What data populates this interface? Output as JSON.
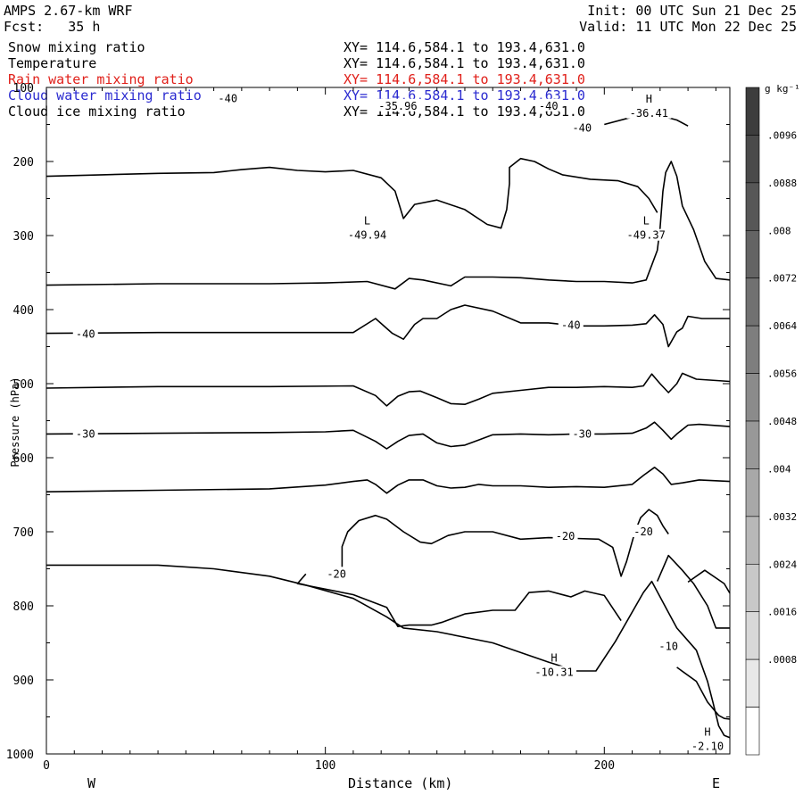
{
  "header": {
    "model": "AMPS 2.67-km WRF",
    "forecast": "Fcst:   35 h",
    "init": "Init: 00 UTC Sun 21 Dec 25",
    "valid": "Valid: 11 UTC Mon 22 Dec 25"
  },
  "fields": [
    {
      "name": "Snow mixing ratio",
      "xy": "XY= 114.6,584.1 to 193.4,631.0",
      "color": "#000000"
    },
    {
      "name": "Temperature",
      "xy": "XY= 114.6,584.1 to 193.4,631.0",
      "color": "#000000"
    },
    {
      "name": "Rain water mixing ratio",
      "xy": "XY= 114.6,584.1 to 193.4,631.0",
      "color": "#e0201a"
    },
    {
      "name": "Cloud water mixing ratio",
      "xy": "XY= 114.6,584.1 to 193.4,631.0",
      "color": "#2a2ad0"
    },
    {
      "name": "Cloud ice mixing ratio",
      "xy": "XY= 114.6,584.1 to 193.4,631.0",
      "color": "#000000"
    }
  ],
  "colorbar": {
    "unit": "g kg⁻¹",
    "ticks": [
      ".0096",
      ".0088",
      ".008",
      ".0072",
      ".0064",
      ".0056",
      ".0048",
      ".004",
      ".0032",
      ".0024",
      ".0016",
      ".0008"
    ],
    "colors": [
      "#3d3d3d",
      "#4a4a4a",
      "#575757",
      "#646464",
      "#717171",
      "#7e7e7e",
      "#8b8b8b",
      "#989898",
      "#a8a8a8",
      "#b8b8b8",
      "#c8c8c8",
      "#d8d8d8",
      "#e8e8e8",
      "#ffffff"
    ]
  },
  "chart_data": {
    "type": "contour",
    "title": "",
    "xlabel": "Distance (km)",
    "ylabel": "Pressure (hPa)",
    "xlim": [
      0,
      245
    ],
    "ylim": [
      1000,
      100
    ],
    "y_inverted": true,
    "x_ticks": [
      0,
      100,
      200
    ],
    "y_ticks": [
      100,
      200,
      300,
      400,
      500,
      600,
      700,
      800,
      900,
      1000
    ],
    "x_end_labels": {
      "left": "W",
      "right": "E"
    },
    "contour_labels": [
      {
        "text": "-40",
        "x": 65,
        "p": 115
      },
      {
        "text": "-35.96",
        "x": 126,
        "p": 125
      },
      {
        "text": "-40",
        "x": 180,
        "p": 125
      },
      {
        "text": "-40",
        "x": 192,
        "p": 155
      },
      {
        "text": "-40",
        "x": 14,
        "p": 433
      },
      {
        "text": "-40",
        "x": 188,
        "p": 421
      },
      {
        "text": "-30",
        "x": 14,
        "p": 568
      },
      {
        "text": "-30",
        "x": 192,
        "p": 568
      },
      {
        "text": "-20",
        "x": 104,
        "p": 757
      },
      {
        "text": "-20",
        "x": 186,
        "p": 706
      },
      {
        "text": "-20",
        "x": 214,
        "p": 700
      },
      {
        "text": "-10",
        "x": 223,
        "p": 855
      }
    ],
    "extrema": [
      {
        "kind": "H",
        "value": "-36.41",
        "x": 216,
        "p": 125
      },
      {
        "kind": "L",
        "value": "-49.94",
        "x": 115,
        "p": 290
      },
      {
        "kind": "L",
        "value": "-49.37",
        "x": 215,
        "p": 290
      },
      {
        "kind": "H",
        "value": "-10.31",
        "x": 182,
        "p": 880
      },
      {
        "kind": "H",
        "value": "-2.10",
        "x": 237,
        "p": 980
      }
    ],
    "isotherms": [
      {
        "pts": [
          [
            0,
            220
          ],
          [
            20,
            218
          ],
          [
            40,
            216
          ],
          [
            60,
            215
          ],
          [
            70,
            211
          ],
          [
            80,
            208
          ],
          [
            90,
            212
          ],
          [
            100,
            214
          ],
          [
            110,
            212
          ],
          [
            120,
            222
          ],
          [
            125,
            240
          ],
          [
            128,
            277
          ],
          [
            132,
            258
          ],
          [
            140,
            252
          ],
          [
            150,
            265
          ],
          [
            158,
            285
          ],
          [
            163,
            290
          ],
          [
            165,
            265
          ],
          [
            166,
            230
          ],
          [
            166,
            208
          ],
          [
            170,
            196
          ],
          [
            175,
            200
          ],
          [
            180,
            210
          ],
          [
            185,
            218
          ],
          [
            195,
            224
          ],
          [
            205,
            226
          ],
          [
            212,
            234
          ],
          [
            216,
            250
          ],
          [
            219,
            269
          ]
        ]
      },
      {
        "pts": [
          [
            0,
            367
          ],
          [
            40,
            365
          ],
          [
            80,
            365
          ],
          [
            100,
            364
          ],
          [
            115,
            362
          ],
          [
            125,
            372
          ],
          [
            130,
            358
          ],
          [
            135,
            360
          ],
          [
            145,
            368
          ],
          [
            150,
            356
          ],
          [
            160,
            356
          ],
          [
            170,
            357
          ],
          [
            180,
            360
          ],
          [
            190,
            362
          ],
          [
            200,
            362
          ],
          [
            210,
            364
          ],
          [
            215,
            360
          ],
          [
            217,
            340
          ],
          [
            219,
            320
          ],
          [
            220,
            290
          ],
          [
            221,
            240
          ],
          [
            222,
            215
          ],
          [
            224,
            200
          ],
          [
            226,
            220
          ],
          [
            228,
            260
          ],
          [
            232,
            292
          ],
          [
            236,
            335
          ],
          [
            240,
            358
          ],
          [
            245,
            360
          ]
        ]
      },
      {
        "pts": [
          [
            0,
            432
          ],
          [
            40,
            431
          ],
          [
            80,
            431
          ],
          [
            110,
            431
          ],
          [
            118,
            412
          ],
          [
            124,
            432
          ],
          [
            128,
            440
          ],
          [
            132,
            420
          ],
          [
            135,
            412
          ],
          [
            140,
            412
          ],
          [
            145,
            400
          ],
          [
            150,
            394
          ],
          [
            160,
            402
          ],
          [
            170,
            418
          ],
          [
            180,
            418
          ],
          [
            190,
            422
          ],
          [
            200,
            422
          ],
          [
            210,
            421
          ],
          [
            215,
            419
          ],
          [
            218,
            407
          ],
          [
            221,
            420
          ],
          [
            223,
            450
          ],
          [
            226,
            430
          ],
          [
            228,
            425
          ],
          [
            230,
            409
          ],
          [
            235,
            412
          ],
          [
            245,
            412
          ]
        ]
      },
      {
        "pts": [
          [
            0,
            506
          ],
          [
            40,
            504
          ],
          [
            80,
            504
          ],
          [
            110,
            503
          ],
          [
            118,
            516
          ],
          [
            122,
            530
          ],
          [
            126,
            517
          ],
          [
            130,
            511
          ],
          [
            134,
            510
          ],
          [
            140,
            519
          ],
          [
            145,
            527
          ],
          [
            150,
            528
          ],
          [
            155,
            521
          ],
          [
            160,
            513
          ],
          [
            170,
            509
          ],
          [
            180,
            505
          ],
          [
            190,
            505
          ],
          [
            200,
            504
          ],
          [
            210,
            505
          ],
          [
            214,
            503
          ],
          [
            217,
            487
          ],
          [
            220,
            500
          ],
          [
            223,
            512
          ],
          [
            226,
            500
          ],
          [
            228,
            486
          ],
          [
            233,
            494
          ],
          [
            245,
            497
          ]
        ]
      },
      {
        "pts": [
          [
            0,
            568
          ],
          [
            40,
            567
          ],
          [
            80,
            566
          ],
          [
            100,
            565
          ],
          [
            110,
            563
          ],
          [
            118,
            578
          ],
          [
            122,
            588
          ],
          [
            126,
            578
          ],
          [
            130,
            570
          ],
          [
            135,
            568
          ],
          [
            140,
            580
          ],
          [
            145,
            585
          ],
          [
            150,
            583
          ],
          [
            155,
            576
          ],
          [
            160,
            569
          ],
          [
            170,
            568
          ],
          [
            180,
            569
          ],
          [
            190,
            568
          ],
          [
            200,
            568
          ],
          [
            210,
            567
          ],
          [
            215,
            560
          ],
          [
            218,
            552
          ],
          [
            221,
            563
          ],
          [
            224,
            575
          ],
          [
            226,
            568
          ],
          [
            230,
            556
          ],
          [
            234,
            555
          ],
          [
            245,
            558
          ]
        ]
      },
      {
        "pts": [
          [
            0,
            646
          ],
          [
            40,
            644
          ],
          [
            80,
            642
          ],
          [
            100,
            637
          ],
          [
            110,
            632
          ],
          [
            115,
            630
          ],
          [
            118,
            636
          ],
          [
            122,
            648
          ],
          [
            126,
            637
          ],
          [
            130,
            630
          ],
          [
            135,
            630
          ],
          [
            140,
            638
          ],
          [
            145,
            641
          ],
          [
            150,
            640
          ],
          [
            155,
            636
          ],
          [
            160,
            638
          ],
          [
            170,
            638
          ],
          [
            180,
            640
          ],
          [
            190,
            639
          ],
          [
            200,
            640
          ],
          [
            210,
            636
          ],
          [
            214,
            624
          ],
          [
            218,
            613
          ],
          [
            221,
            622
          ],
          [
            224,
            636
          ],
          [
            228,
            634
          ],
          [
            234,
            630
          ],
          [
            245,
            632
          ]
        ]
      },
      {
        "pts": [
          [
            106,
            757
          ],
          [
            106,
            720
          ],
          [
            108,
            700
          ],
          [
            112,
            685
          ],
          [
            118,
            678
          ],
          [
            122,
            683
          ],
          [
            128,
            700
          ],
          [
            134,
            714
          ],
          [
            138,
            716
          ],
          [
            144,
            705
          ],
          [
            150,
            700
          ],
          [
            160,
            700
          ],
          [
            170,
            710
          ],
          [
            180,
            708
          ],
          [
            190,
            709
          ],
          [
            198,
            710
          ],
          [
            203,
            721
          ],
          [
            205,
            746
          ],
          [
            206,
            760
          ],
          [
            208,
            740
          ],
          [
            211,
            700
          ],
          [
            213,
            681
          ],
          [
            216,
            670
          ],
          [
            219,
            678
          ],
          [
            221,
            692
          ],
          [
            223,
            703
          ]
        ]
      },
      {
        "pts": [
          [
            93,
            757
          ],
          [
            90,
            770
          ],
          [
            110,
            785
          ],
          [
            122,
            802
          ],
          [
            126,
            828
          ],
          [
            130,
            826
          ],
          [
            138,
            826
          ],
          [
            142,
            822
          ],
          [
            150,
            811
          ],
          [
            160,
            806
          ],
          [
            168,
            806
          ],
          [
            173,
            782
          ],
          [
            180,
            780
          ],
          [
            188,
            788
          ],
          [
            193,
            780
          ],
          [
            200,
            786
          ],
          [
            206,
            820
          ]
        ]
      },
      {
        "pts": [
          [
            0,
            745
          ],
          [
            40,
            745
          ],
          [
            60,
            750
          ],
          [
            80,
            760
          ],
          [
            93,
            772
          ],
          [
            110,
            790
          ],
          [
            122,
            815
          ],
          [
            128,
            830
          ],
          [
            140,
            835
          ],
          [
            160,
            850
          ],
          [
            180,
            876
          ],
          [
            190,
            888
          ],
          [
            197,
            888
          ],
          [
            204,
            848
          ],
          [
            214,
            782
          ],
          [
            217,
            767
          ],
          [
            223,
            809
          ],
          [
            226,
            830
          ],
          [
            233,
            860
          ],
          [
            237,
            902
          ],
          [
            239,
            931
          ],
          [
            241,
            962
          ],
          [
            243,
            975
          ],
          [
            245,
            978
          ]
        ]
      },
      {
        "pts": [
          [
            219,
            767
          ],
          [
            223,
            732
          ],
          [
            228,
            752
          ],
          [
            232,
            770
          ],
          [
            237,
            800
          ],
          [
            240,
            830
          ],
          [
            245,
            830
          ]
        ]
      },
      {
        "pts": [
          [
            226,
            883
          ],
          [
            233,
            902
          ],
          [
            237,
            930
          ],
          [
            241,
            948
          ],
          [
            243,
            952
          ],
          [
            245,
            953
          ]
        ]
      },
      {
        "pts": [
          [
            230,
            768
          ],
          [
            236,
            752
          ],
          [
            243,
            770
          ],
          [
            245,
            783
          ]
        ]
      },
      {
        "pts": [
          [
            200,
            150
          ],
          [
            210,
            140
          ],
          [
            220,
            138
          ],
          [
            226,
            144
          ],
          [
            230,
            152
          ]
        ]
      }
    ]
  }
}
